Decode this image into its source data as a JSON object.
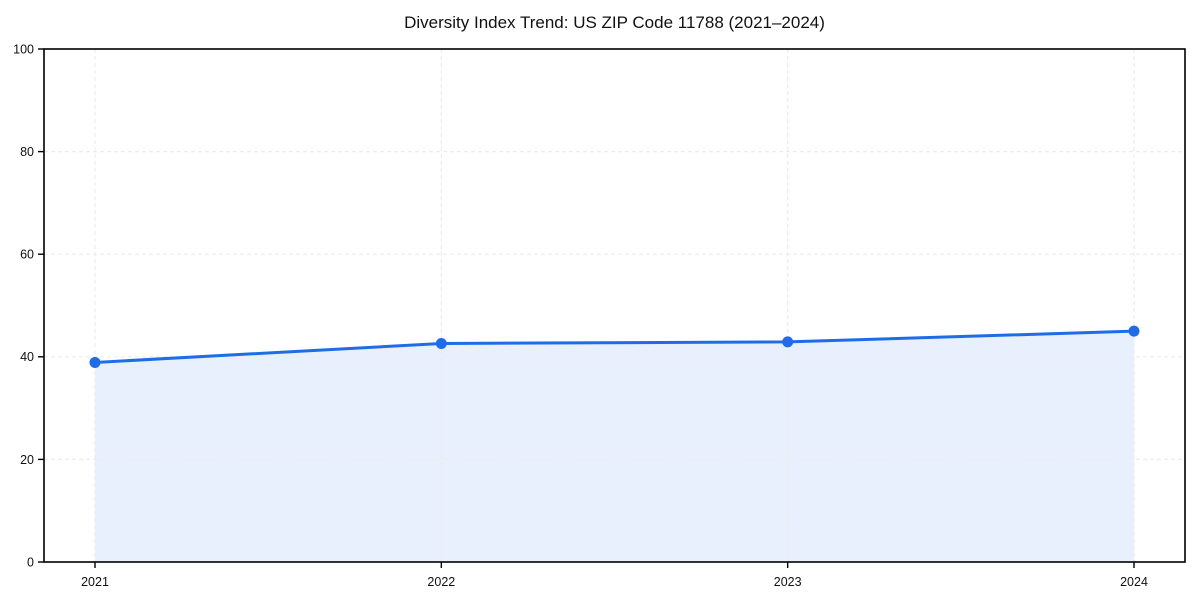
{
  "chart_data": {
    "type": "area",
    "title": "Diversity Index Trend: US ZIP Code 11788 (2021–2024)",
    "xlabel": "",
    "ylabel": "",
    "categories": [
      "2021",
      "2022",
      "2023",
      "2024"
    ],
    "series": [
      {
        "name": "Diversity Index",
        "values": [
          38.9,
          42.6,
          42.9,
          45.0
        ]
      }
    ],
    "ylim": [
      0,
      100
    ],
    "yticks": [
      0,
      20,
      40,
      60,
      80,
      100
    ],
    "grid": "dashed-both-axes",
    "legend": "none",
    "marker": "circle",
    "colors": {
      "line": "#1f6ce8",
      "marker": "#1f6ce8",
      "area_fill": "#e8f0fd",
      "grid": "#ececec",
      "spine": "#000000",
      "tick_text": "#111111",
      "background": "#ffffff"
    }
  }
}
